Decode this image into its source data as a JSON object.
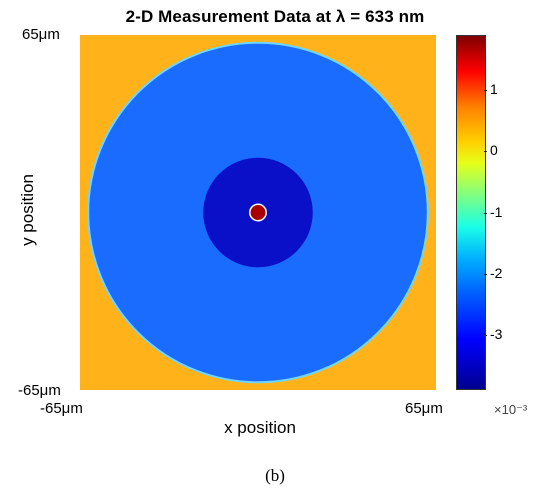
{
  "figure": {
    "title": "2-D Measurement Data at λ = 633 nm",
    "caption": "(b)"
  },
  "chart_data": {
    "type": "heatmap",
    "title": "2-D Measurement Data at λ = 633 nm",
    "xlabel": "x position",
    "ylabel": "y position",
    "x_tick_labels": [
      "-65μm",
      "65μm"
    ],
    "y_tick_labels": [
      "65μm",
      "-65μm"
    ],
    "xlim_um": [
      -65,
      65
    ],
    "ylim_um": [
      -65,
      65
    ],
    "colorbar": {
      "colormap": "jet",
      "range": [
        -3.9,
        1.9
      ],
      "ticks": [
        1,
        0,
        -1,
        -2,
        -3
      ],
      "tick_labels": [
        "1",
        "0",
        "-1",
        "-2",
        "-3"
      ],
      "exponent_label": "×10⁻³"
    },
    "regions": [
      {
        "name": "background",
        "radius_um": null,
        "value": 0.3
      },
      {
        "name": "outer disk",
        "radius_um": 62,
        "value": -2.55
      },
      {
        "name": "inner disk",
        "radius_um": 20,
        "value": -3.7
      },
      {
        "name": "center spot",
        "radius_um": 3.0,
        "value": 1.6
      }
    ],
    "grid": false
  },
  "colors": {
    "background": "#ffb21a",
    "outer_disk": "#1a6cff",
    "inner_disk": "#0a10c8",
    "center_spot": "#a80000"
  }
}
